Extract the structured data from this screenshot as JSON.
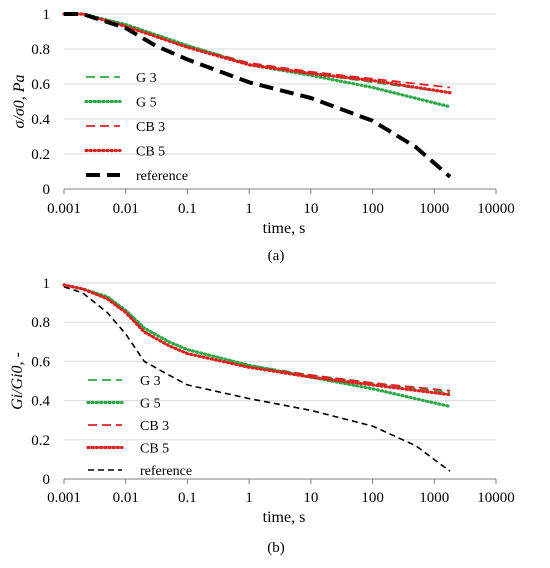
{
  "chart_data": [
    {
      "type": "line",
      "panel_label": "(a)",
      "xlabel": "time, s",
      "ylabel": "σ/σ0, Pa",
      "xscale": "log",
      "xlim": [
        0.001,
        10000
      ],
      "ylim": [
        0,
        1
      ],
      "x_ticks": [
        "0.001",
        "0.01",
        "0.1",
        "1",
        "10",
        "100",
        "1000",
        "10000"
      ],
      "y_ticks": [
        "0",
        "0.2",
        "0.4",
        "0.6",
        "0.8",
        "1"
      ],
      "grid": "horizontal",
      "legend_position": "left-inside",
      "series": [
        {
          "name": "G 3",
          "color": "#2ca846",
          "dash": "long-dash",
          "x": [
            0.001,
            0.002,
            0.01,
            0.1,
            1,
            10,
            100,
            1800
          ],
          "y": [
            1.0,
            1.0,
            0.94,
            0.82,
            0.72,
            0.66,
            0.61,
            0.55
          ]
        },
        {
          "name": "G 5",
          "color": "#2ca846",
          "dash": "dotted",
          "x": [
            0.001,
            0.002,
            0.01,
            0.1,
            1,
            10,
            100,
            1800
          ],
          "y": [
            1.0,
            1.0,
            0.94,
            0.82,
            0.71,
            0.65,
            0.58,
            0.47
          ]
        },
        {
          "name": "CB 3",
          "color": "#e02020",
          "dash": "long-dash",
          "x": [
            0.001,
            0.002,
            0.01,
            0.1,
            1,
            10,
            100,
            1800
          ],
          "y": [
            1.0,
            1.0,
            0.93,
            0.81,
            0.72,
            0.67,
            0.63,
            0.58
          ]
        },
        {
          "name": "CB 5",
          "color": "#e02020",
          "dash": "dotted",
          "x": [
            0.001,
            0.002,
            0.01,
            0.1,
            1,
            10,
            100,
            1800
          ],
          "y": [
            1.0,
            1.0,
            0.93,
            0.81,
            0.71,
            0.66,
            0.62,
            0.55
          ]
        },
        {
          "name": "reference",
          "color": "#000000",
          "dash": "heavy-dash",
          "x": [
            0.001,
            0.002,
            0.01,
            0.03,
            0.1,
            1,
            10,
            100,
            500,
            1800
          ],
          "y": [
            1.0,
            1.0,
            0.92,
            0.82,
            0.74,
            0.61,
            0.52,
            0.39,
            0.24,
            0.07
          ]
        }
      ]
    },
    {
      "type": "line",
      "panel_label": "(b)",
      "xlabel": "time, s",
      "ylabel": "Gi/Gi0, -",
      "xscale": "log",
      "xlim": [
        0.001,
        10000
      ],
      "ylim": [
        0,
        1
      ],
      "x_ticks": [
        "0.001",
        "0.01",
        "0.1",
        "1",
        "10",
        "100",
        "1000",
        "10000"
      ],
      "y_ticks": [
        "0",
        "0.2",
        "0.4",
        "0.6",
        "0.8",
        "1"
      ],
      "grid": "horizontal",
      "legend_position": "left-inside",
      "series": [
        {
          "name": "G 3",
          "color": "#2ca846",
          "dash": "long-dash",
          "x": [
            0.001,
            0.002,
            0.005,
            0.01,
            0.02,
            0.05,
            0.1,
            1,
            10,
            100,
            1800
          ],
          "y": [
            0.99,
            0.97,
            0.93,
            0.86,
            0.77,
            0.7,
            0.66,
            0.58,
            0.53,
            0.49,
            0.44
          ]
        },
        {
          "name": "G 5",
          "color": "#2ca846",
          "dash": "dotted",
          "x": [
            0.001,
            0.002,
            0.005,
            0.01,
            0.02,
            0.05,
            0.1,
            1,
            10,
            100,
            1800
          ],
          "y": [
            0.99,
            0.97,
            0.93,
            0.86,
            0.77,
            0.7,
            0.66,
            0.58,
            0.52,
            0.46,
            0.37
          ]
        },
        {
          "name": "CB 3",
          "color": "#e02020",
          "dash": "long-dash",
          "x": [
            0.001,
            0.002,
            0.005,
            0.01,
            0.02,
            0.05,
            0.1,
            1,
            10,
            100,
            1800
          ],
          "y": [
            0.99,
            0.97,
            0.92,
            0.85,
            0.75,
            0.68,
            0.64,
            0.57,
            0.53,
            0.49,
            0.45
          ]
        },
        {
          "name": "CB 5",
          "color": "#e02020",
          "dash": "dotted",
          "x": [
            0.001,
            0.002,
            0.005,
            0.01,
            0.02,
            0.05,
            0.1,
            1,
            10,
            100,
            1800
          ],
          "y": [
            0.99,
            0.97,
            0.92,
            0.85,
            0.75,
            0.68,
            0.64,
            0.57,
            0.52,
            0.48,
            0.43
          ]
        },
        {
          "name": "reference",
          "color": "#000000",
          "dash": "dashed",
          "x": [
            0.001,
            0.002,
            0.005,
            0.01,
            0.02,
            0.05,
            0.1,
            1,
            10,
            100,
            500,
            1800
          ],
          "y": [
            0.98,
            0.95,
            0.85,
            0.74,
            0.6,
            0.53,
            0.48,
            0.41,
            0.35,
            0.27,
            0.17,
            0.04
          ]
        }
      ]
    }
  ]
}
